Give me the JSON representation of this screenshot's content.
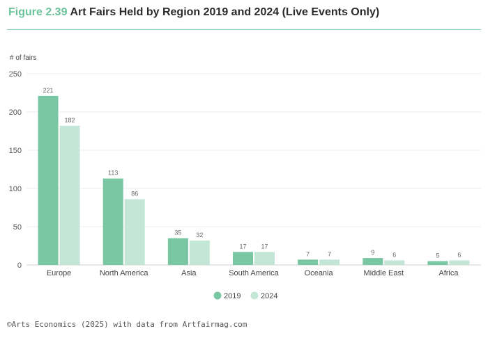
{
  "header": {
    "figure_number": "Figure 2.39",
    "title": "Art Fairs Held by Region 2019 and 2024 (Live Events Only)"
  },
  "colors": {
    "accent": "#6cc29b",
    "series_2019": "#79c6a3",
    "series_2024": "#c3e6d6"
  },
  "chart_data": {
    "type": "bar",
    "title": "Art Fairs Held by Region 2019 and 2024 (Live Events Only)",
    "ylabel": "# of fairs",
    "xlabel": "",
    "ylim": [
      0,
      250
    ],
    "yticks": [
      0,
      50,
      100,
      150,
      200,
      250
    ],
    "grid": true,
    "legend_position": "bottom-center",
    "categories": [
      "Europe",
      "North America",
      "Asia",
      "South America",
      "Oceania",
      "Middle East",
      "Africa"
    ],
    "series": [
      {
        "name": "2019",
        "values": [
          221,
          113,
          35,
          17,
          7,
          9,
          5
        ]
      },
      {
        "name": "2024",
        "values": [
          182,
          86,
          32,
          17,
          7,
          6,
          6
        ]
      }
    ]
  },
  "footer": {
    "source": "©Arts Economics (2025) with data from Artfairmag.com"
  }
}
